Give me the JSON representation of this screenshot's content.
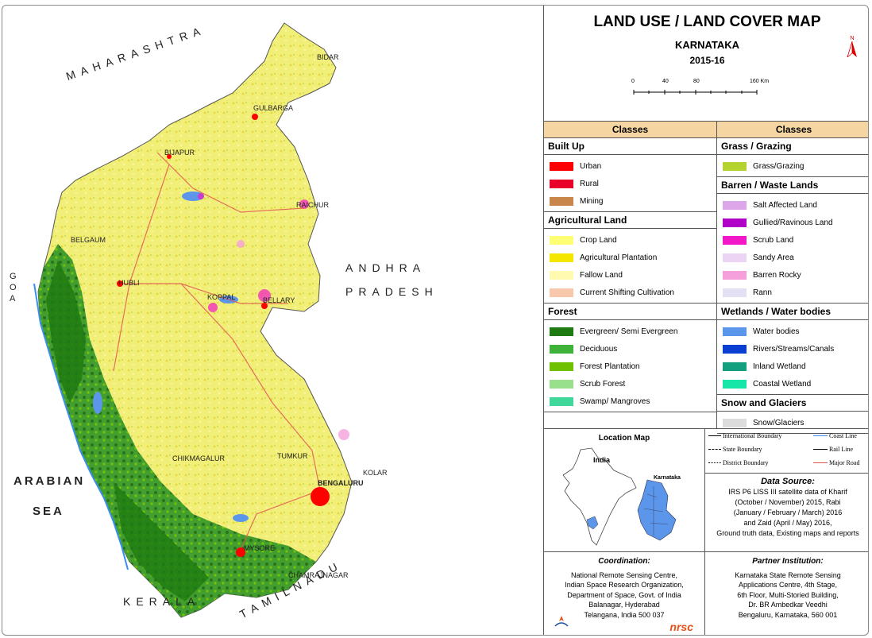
{
  "title": {
    "main": "LAND USE / LAND COVER MAP",
    "state": "KARNATAKA",
    "year": "2015-16",
    "north": "N"
  },
  "scale": {
    "ticks": [
      "0",
      "40",
      "80",
      "160 Km"
    ]
  },
  "map": {
    "regions": {
      "maharashtra": "MAHARASHTRA",
      "andhra": "ANDHRA",
      "pradesh": "PRADESH",
      "goa": "GOA",
      "arabian": "ARABIAN",
      "sea": "SEA",
      "kerala": "KERALA",
      "tamilnadu": "TAMILNADU"
    },
    "cities": {
      "bidar": "BIDAR",
      "gulbarga": "GULBARGA",
      "bijapur": "BIJAPUR",
      "raichur": "RAICHUR",
      "belgaum": "BELGAUM",
      "hubli": "HUBLI",
      "koppal": "KOPPAL",
      "bellary": "BELLARY",
      "chikmagalur": "CHIKMAGALUR",
      "tumkur": "TUMKUR",
      "kolar": "KOLAR",
      "bengaluru": "BENGALURU",
      "mysore": "MYSORE",
      "chamrajnagar": "CHAMRAJNAGAR"
    }
  },
  "legend": {
    "header": "Classes",
    "left_groups": [
      {
        "title": "Built Up",
        "items": [
          {
            "label": "Urban",
            "color": "#ff0000"
          },
          {
            "label": "Rural",
            "color": "#e8002a"
          },
          {
            "label": "Mining",
            "color": "#c8864a"
          }
        ]
      },
      {
        "title": "Agricultural Land",
        "items": [
          {
            "label": "Crop Land",
            "color": "#ffff73"
          },
          {
            "label": "Agricultural Plantation",
            "color": "#f5e600"
          },
          {
            "label": "Fallow Land",
            "color": "#fffab0"
          },
          {
            "label": "Current Shifting Cultivation",
            "color": "#f8c8ad"
          }
        ]
      },
      {
        "title": "Forest",
        "items": [
          {
            "label": "Evergreen/ Semi Evergreen",
            "color": "#1e7a12"
          },
          {
            "label": "Deciduous",
            "color": "#3fb23a"
          },
          {
            "label": "Forest Plantation",
            "color": "#6ec000"
          },
          {
            "label": "Scrub Forest",
            "color": "#98e08c"
          },
          {
            "label": "Swamp/ Mangroves",
            "color": "#40d89a"
          }
        ]
      }
    ],
    "right_groups": [
      {
        "title": "Grass / Grazing",
        "items": [
          {
            "label": "Grass/Grazing",
            "color": "#b4d230"
          }
        ]
      },
      {
        "title": "Barren / Waste Lands",
        "items": [
          {
            "label": "Salt Affected Land",
            "color": "#dca6e8"
          },
          {
            "label": "Gullied/Ravinous Land",
            "color": "#b000c8"
          },
          {
            "label": "Scrub Land",
            "color": "#f218c8"
          },
          {
            "label": "Sandy Area",
            "color": "#ecd4f4"
          },
          {
            "label": "Barren Rocky",
            "color": "#f5a0da"
          },
          {
            "label": "Rann",
            "color": "#e4e0f4"
          }
        ]
      },
      {
        "title": "Wetlands / Water bodies",
        "items": [
          {
            "label": "Water bodies",
            "color": "#5b96ea"
          },
          {
            "label": "Rivers/Streams/Canals",
            "color": "#0a3fd2"
          },
          {
            "label": "Inland Wetland",
            "color": "#13a07e"
          },
          {
            "label": "Coastal Wetland",
            "color": "#16e6a8"
          }
        ]
      },
      {
        "title": "Snow and Glaciers",
        "items": [
          {
            "label": "Snow/Glaciers",
            "color": "#dcdcdc"
          }
        ]
      }
    ]
  },
  "location_map": {
    "title": "Location Map",
    "india": "India",
    "karnataka": "Karnataka"
  },
  "line_legend": {
    "international": "International Boundary",
    "coast": "Coast Line",
    "state": "State Boundary",
    "rail": "Rail Line",
    "district": "District Boundary",
    "road": "Major Road"
  },
  "data_source": {
    "title": "Data Source:",
    "lines": [
      "IRS P6 LISS III satellite data of Kharif",
      "(October / November) 2015, Rabi",
      "(January / February / March) 2016",
      "and Zaid (April / May) 2016,",
      "Ground truth data, Existing maps and reports"
    ]
  },
  "coordination": {
    "title": "Coordination:",
    "lines": [
      "National Remote Sensing Centre,",
      "Indian Space Research Organization,",
      "Department of Space, Govt. of India",
      "Balanagar, Hyderabad",
      "Telangana, India 500 037"
    ],
    "logo": "nrsc"
  },
  "partner": {
    "title": "Partner Institution:",
    "lines": [
      "Karnataka State Remote Sensing",
      "Applications Centre, 4th Stage,",
      "6th Floor, Multi-Storied Building,",
      "Dr. BR Ambedkar Veedhi",
      "Bengaluru, Karnataka, 560 001"
    ]
  }
}
